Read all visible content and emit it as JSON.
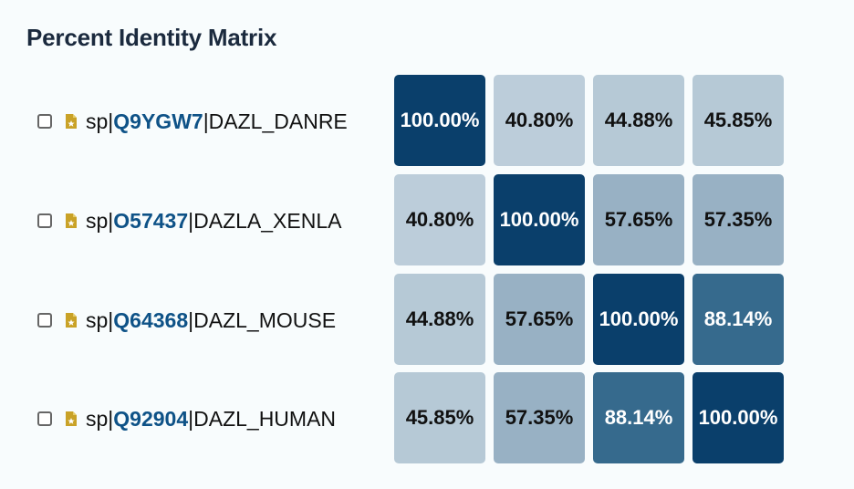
{
  "title": "Percent Identity Matrix",
  "rows": [
    {
      "prefix": "sp|",
      "accession": "Q9YGW7",
      "suffix": "|DAZL_DANRE"
    },
    {
      "prefix": "sp|",
      "accession": "O57437",
      "suffix": "|DAZLA_XENLA"
    },
    {
      "prefix": "sp|",
      "accession": "Q64368",
      "suffix": "|DAZL_MOUSE"
    },
    {
      "prefix": "sp|",
      "accession": "Q92904",
      "suffix": "|DAZL_HUMAN"
    }
  ],
  "matrix": [
    [
      "100.00%",
      "40.80%",
      "44.88%",
      "45.85%"
    ],
    [
      "40.80%",
      "100.00%",
      "57.65%",
      "57.35%"
    ],
    [
      "44.88%",
      "57.65%",
      "100.00%",
      "88.14%"
    ],
    [
      "45.85%",
      "57.35%",
      "88.14%",
      "100.00%"
    ]
  ],
  "colors": {
    "identity_100": "#0a3f6b",
    "identity_88": "#366a8d",
    "identity_57": "#98b1c4",
    "identity_45": "#b6c9d6",
    "identity_40": "#bccdda",
    "accession_link": "#0e5287",
    "swissprot_icon": "#c9a227"
  },
  "icons": {
    "row_checkbox": "checkbox-unchecked",
    "row_db_icon": "swissprot-document-star-icon"
  }
}
